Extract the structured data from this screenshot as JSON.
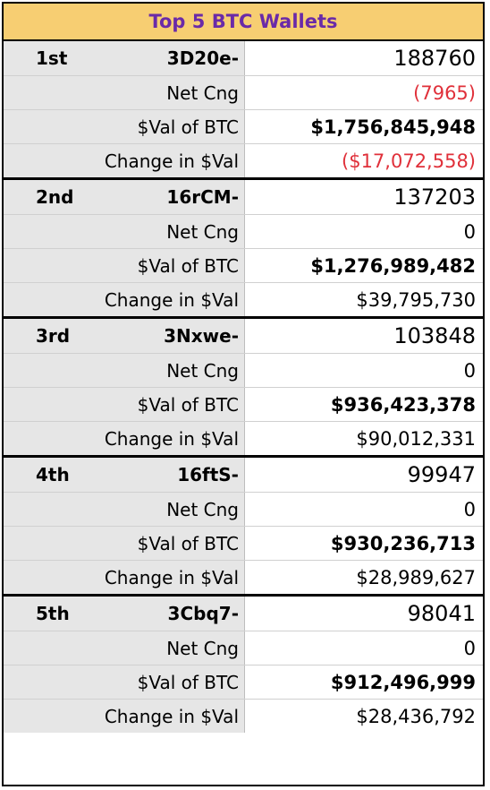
{
  "title": "Top 5 BTC Wallets",
  "wallets": [
    {
      "rank": "1st",
      "address": "3D20e-",
      "btc": "188760",
      "net_label": "Net Cng",
      "net": "(7965)",
      "val_label": "$Val of BTC",
      "val": "$1,756,845,948",
      "chg_label": "Change in $Val",
      "chg": "($17,072,558)"
    },
    {
      "rank": "2nd",
      "address": "16rCM-",
      "btc": "137203",
      "net_label": "Net Cng",
      "net": "0",
      "val_label": "$Val of BTC",
      "val": "$1,276,989,482",
      "chg_label": "Change in $Val",
      "chg": "$39,795,730"
    },
    {
      "rank": "3rd",
      "address": "3Nxwe-",
      "btc": "103848",
      "net_label": "Net Cng",
      "net": "0",
      "val_label": "$Val of BTC",
      "val": "$936,423,378",
      "chg_label": "Change in $Val",
      "chg": "$90,012,331"
    },
    {
      "rank": "4th",
      "address": "16ftS-",
      "btc": "99947",
      "net_label": "Net Cng",
      "net": "0",
      "val_label": "$Val of BTC",
      "val": "$930,236,713",
      "chg_label": "Change in $Val",
      "chg": "$28,989,627"
    },
    {
      "rank": "5th",
      "address": "3Cbq7-",
      "btc": "98041",
      "net_label": "Net Cng",
      "net": "0",
      "val_label": "$Val of BTC",
      "val": "$912,496,999",
      "chg_label": "Change in $Val",
      "chg": "$28,436,792"
    }
  ],
  "colors": {
    "title_bg": "#f7ce72",
    "title_text": "#6a2aa8",
    "label_bg": "#e6e6e6",
    "negative": "#e0303a"
  }
}
